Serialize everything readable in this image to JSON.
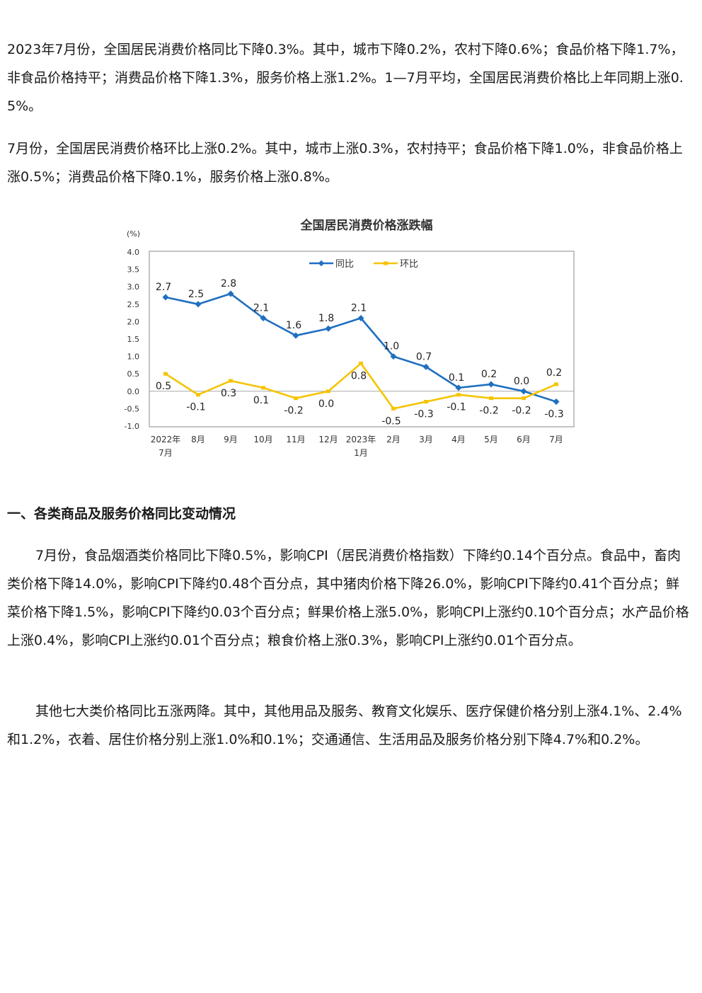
{
  "paragraphs": {
    "p1": "2023年7月份，全国居民消费价格同比下降0.3%。其中，城市下降0.2%，农村下降0.6%；食品价格下降1.7%，非食品价格持平；消费品价格下降1.3%，服务价格上涨1.2%。1—7月平均，全国居民消费价格比上年同期上涨0.5%。",
    "p2": "7月份，全国居民消费价格环比上涨0.2%。其中，城市上涨0.3%，农村持平；食品价格下降1.0%，非食品价格上涨0.5%；消费品价格下降0.1%，服务价格上涨0.8%。",
    "p3": "7月份，食品烟酒类价格同比下降0.5%，影响CPI（居民消费价格指数）下降约0.14个百分点。食品中，畜肉类价格下降14.0%，影响CPI下降约0.48个百分点，其中猪肉价格下降26.0%，影响CPI下降约0.41个百分点；鲜菜价格下降1.5%，影响CPI下降约0.03个百分点；鲜果价格上涨5.0%，影响CPI上涨约0.10个百分点；水产品价格上涨0.4%，影响CPI上涨约0.01个百分点；粮食价格上涨0.3%，影响CPI上涨约0.01个百分点。",
    "p4": "其他七大类价格同比五涨两降。其中，其他用品及服务、教育文化娱乐、医疗保健价格分别上涨4.1%、2.4%和1.2%，衣着、居住价格分别上涨1.0%和0.1%；交通通信、生活用品及服务价格分别下降4.7%和0.2%。"
  },
  "section_heading": "一、各类商品及服务价格同比变动情况",
  "chart_data": {
    "type": "line",
    "title": "全国居民消费价格涨跌幅",
    "ylabel": "(%)",
    "ylim": [
      -1.0,
      4.0
    ],
    "yticks": [
      "4.0",
      "3.5",
      "3.0",
      "2.5",
      "2.0",
      "1.5",
      "1.0",
      "0.5",
      "0.0",
      "-0.5",
      "-1.0"
    ],
    "categories": [
      [
        "2022年",
        "7月"
      ],
      [
        "8月"
      ],
      [
        "9月"
      ],
      [
        "10月"
      ],
      [
        "11月"
      ],
      [
        "12月"
      ],
      [
        "2023年",
        "1月"
      ],
      [
        "2月"
      ],
      [
        "3月"
      ],
      [
        "4月"
      ],
      [
        "5月"
      ],
      [
        "6月"
      ],
      [
        "7月"
      ]
    ],
    "legend_position": "top-center",
    "grid": false,
    "series": [
      {
        "name": "同比",
        "color": "#1f6fc0",
        "values": [
          2.7,
          2.5,
          2.8,
          2.1,
          1.6,
          1.8,
          2.1,
          1.0,
          0.7,
          0.1,
          0.2,
          0.0,
          -0.3
        ],
        "labels": [
          "2.7",
          "2.5",
          "2.8",
          "2.1",
          "1.6",
          "1.8",
          "2.1",
          "1.0",
          "0.7",
          "0.1",
          "0.2",
          "0.0",
          "-0.3"
        ]
      },
      {
        "name": "环比",
        "color": "#f5c400",
        "values": [
          0.5,
          -0.1,
          0.3,
          0.1,
          -0.2,
          0.0,
          0.8,
          -0.5,
          -0.3,
          -0.1,
          -0.2,
          -0.2,
          0.2
        ],
        "labels": [
          "0.5",
          "-0.1",
          "0.3",
          "0.1",
          "-0.2",
          "0.0",
          "0.8",
          "-0.5",
          "-0.3",
          "-0.1",
          "-0.2",
          "-0.2",
          "0.2"
        ]
      }
    ]
  }
}
